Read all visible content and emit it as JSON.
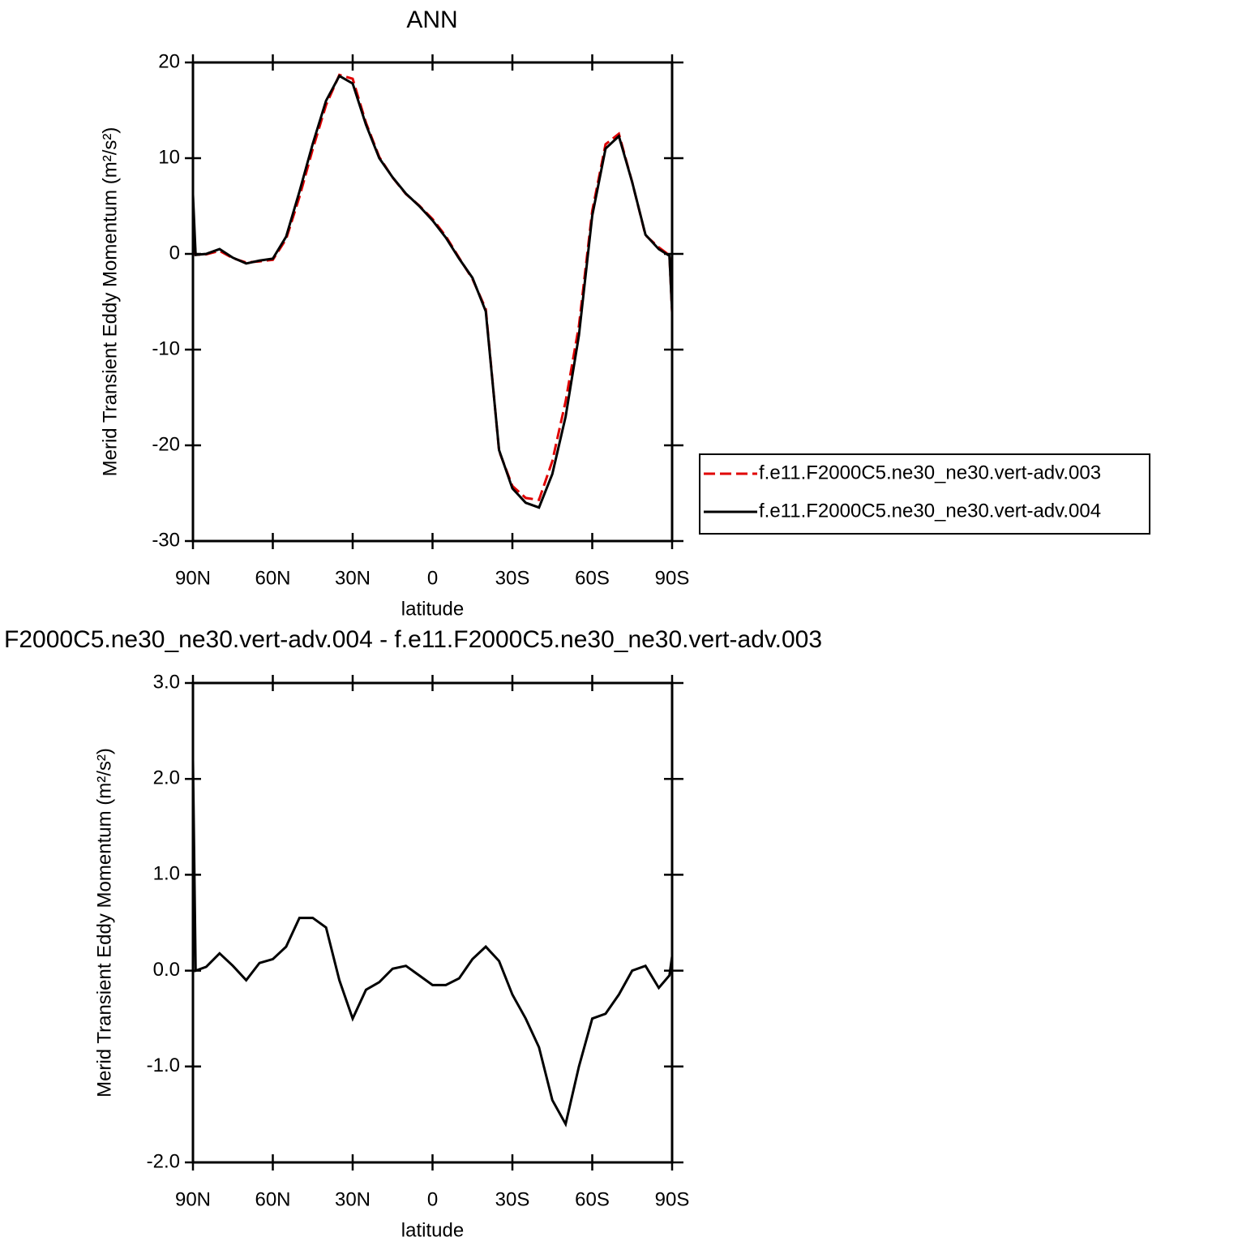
{
  "chart_data": [
    {
      "type": "line",
      "title": "ANN",
      "xlabel": "latitude",
      "ylabel": "Merid Transient Eddy Momentum (m²/s²)",
      "x": [
        90,
        89,
        85,
        80,
        75,
        70,
        65,
        60,
        55,
        50,
        45,
        40,
        35,
        30,
        25,
        20,
        15,
        10,
        5,
        0,
        -5,
        -10,
        -15,
        -20,
        -25,
        -30,
        -35,
        -40,
        -45,
        -50,
        -55,
        -60,
        -65,
        -70,
        -75,
        -80,
        -85,
        -89,
        -90
      ],
      "xlim": [
        90,
        -90
      ],
      "xticks": [
        {
          "value": 90,
          "label": "90N"
        },
        {
          "value": 60,
          "label": "60N"
        },
        {
          "value": 30,
          "label": "30N"
        },
        0,
        {
          "value": -30,
          "label": "30S"
        },
        {
          "value": -60,
          "label": "60S"
        },
        {
          "value": -90,
          "label": "90S"
        }
      ],
      "ylim": [
        -30,
        20
      ],
      "yticks": [
        20,
        10,
        0,
        -10,
        -20,
        -30
      ],
      "legend": "right",
      "series": [
        {
          "name": "f.e11.F2000C5.ne30_ne30.vert-adv.003",
          "color": "#e00000",
          "dashed": true,
          "values": [
            4.0,
            -0.1,
            -0.04,
            0.32,
            -0.45,
            -0.9,
            -0.78,
            -0.62,
            1.55,
            5.95,
            10.95,
            15.55,
            18.7,
            18.3,
            13.7,
            10.12,
            7.98,
            6.25,
            5.05,
            3.65,
            1.85,
            -0.42,
            -2.62,
            -5.75,
            -20.6,
            -24.25,
            -25.5,
            -25.7,
            -21.65,
            -15.4,
            -7.5,
            4.5,
            11.45,
            12.55,
            7.5,
            1.95,
            0.68,
            -0.15,
            -6.15
          ]
        },
        {
          "name": "f.e11.F2000C5.ne30_ne30.vert-adv.004",
          "color": "#000000",
          "dashed": false,
          "values": [
            6.2,
            -0.1,
            0.0,
            0.5,
            -0.4,
            -1.0,
            -0.7,
            -0.5,
            1.8,
            6.5,
            11.5,
            16,
            18.6,
            17.8,
            13.5,
            10,
            8,
            6.3,
            5,
            3.5,
            1.7,
            -0.5,
            -2.5,
            -6,
            -20.5,
            -24.5,
            -26,
            -26.5,
            -23,
            -17,
            -8.5,
            4,
            11,
            12.3,
            7.5,
            2,
            0.5,
            -0.2,
            -6
          ]
        }
      ]
    },
    {
      "type": "line",
      "title": "F2000C5.ne30_ne30.vert-adv.004 - f.e11.F2000C5.ne30_ne30.vert-adv.003",
      "xlabel": "latitude",
      "ylabel": "Merid Transient Eddy Momentum (m²/s²)",
      "x": [
        90,
        89,
        85,
        80,
        75,
        70,
        65,
        60,
        55,
        50,
        45,
        40,
        35,
        30,
        25,
        20,
        15,
        10,
        5,
        0,
        -5,
        -10,
        -15,
        -20,
        -25,
        -30,
        -35,
        -40,
        -45,
        -50,
        -55,
        -60,
        -65,
        -70,
        -75,
        -80,
        -85,
        -89,
        -90
      ],
      "xlim": [
        90,
        -90
      ],
      "xticks": [
        {
          "value": 90,
          "label": "90N"
        },
        {
          "value": 60,
          "label": "60N"
        },
        {
          "value": 30,
          "label": "30N"
        },
        0,
        {
          "value": -30,
          "label": "30S"
        },
        {
          "value": -60,
          "label": "60S"
        },
        {
          "value": -90,
          "label": "90S"
        }
      ],
      "ylim": [
        -2,
        3
      ],
      "yticks": [
        {
          "value": 3,
          "label": "3.0"
        },
        {
          "value": 2,
          "label": "2.0"
        },
        {
          "value": 1,
          "label": "1.0"
        },
        {
          "value": 0,
          "label": "0.0"
        },
        {
          "value": -1,
          "label": "-1.0"
        },
        {
          "value": -2,
          "label": "-2.0"
        }
      ],
      "color": "#000000",
      "values": [
        2.2,
        0.0,
        0.04,
        0.18,
        0.05,
        -0.1,
        0.08,
        0.12,
        0.25,
        0.55,
        0.55,
        0.45,
        -0.1,
        -0.5,
        -0.2,
        -0.12,
        0.02,
        0.05,
        -0.05,
        -0.15,
        -0.15,
        -0.08,
        0.12,
        0.25,
        0.1,
        -0.25,
        -0.5,
        -0.8,
        -1.35,
        -1.6,
        -1.0,
        -0.5,
        -0.45,
        -0.25,
        0.0,
        0.05,
        -0.18,
        -0.05,
        0.15
      ]
    }
  ]
}
